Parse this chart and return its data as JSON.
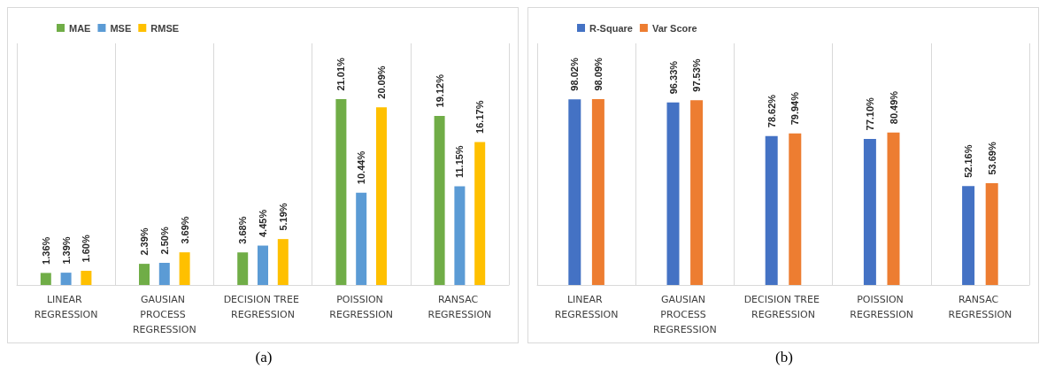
{
  "chart_data": [
    {
      "type": "bar",
      "categories": [
        "LINEAR REGRESSION",
        "GAUSIAN PROCESS REGRESSION",
        "DECISION TREE REGRESSION",
        "POISSION REGRESSION",
        "RANSAC REGRESSION"
      ],
      "series": [
        {
          "name": "MAE",
          "color": "#70ad47",
          "values": [
            1.36,
            2.39,
            3.68,
            21.01,
            19.12
          ],
          "value_labels": [
            "1.36%",
            "2.39%",
            "3.68%",
            "21.01%",
            "19.12%"
          ]
        },
        {
          "name": "MSE",
          "color": "#5b9bd5",
          "values": [
            1.39,
            2.5,
            4.45,
            10.44,
            11.15
          ],
          "value_labels": [
            "1.39%",
            "2.50%",
            "4.45%",
            "10.44%",
            "11.15%"
          ]
        },
        {
          "name": "RMSE",
          "color": "#ffc000",
          "values": [
            1.6,
            3.69,
            5.19,
            20.09,
            16.17
          ],
          "value_labels": [
            "1.60%",
            "3.69%",
            "5.19%",
            "20.09%",
            "16.17%"
          ]
        }
      ],
      "grid": "x",
      "legend": "top left",
      "tick_labels": "x",
      "annotations": [
        "(a)"
      ]
    },
    {
      "type": "bar",
      "categories": [
        "LINEAR REGRESSION",
        "GAUSIAN PROCESS REGRESSION",
        "DECISION TREE REGRESSION",
        "POISSION REGRESSION",
        "RANSAC REGRESSION"
      ],
      "series": [
        {
          "name": "R-Square",
          "color": "#4472c4",
          "values": [
            98.02,
            96.33,
            78.62,
            77.1,
            52.16
          ],
          "value_labels": [
            "98.02%",
            "96.33%",
            "78.62%",
            "77.10%",
            "52.16%"
          ]
        },
        {
          "name": "Var Score",
          "color": "#ed7d31",
          "values": [
            98.09,
            97.53,
            79.94,
            80.49,
            53.69
          ],
          "value_labels": [
            "98.09%",
            "97.53%",
            "79.94%",
            "80.49%",
            "53.69%"
          ]
        }
      ],
      "grid": "x",
      "legend": "top left",
      "tick_labels": "x",
      "annotations": [
        "(b)"
      ]
    }
  ]
}
